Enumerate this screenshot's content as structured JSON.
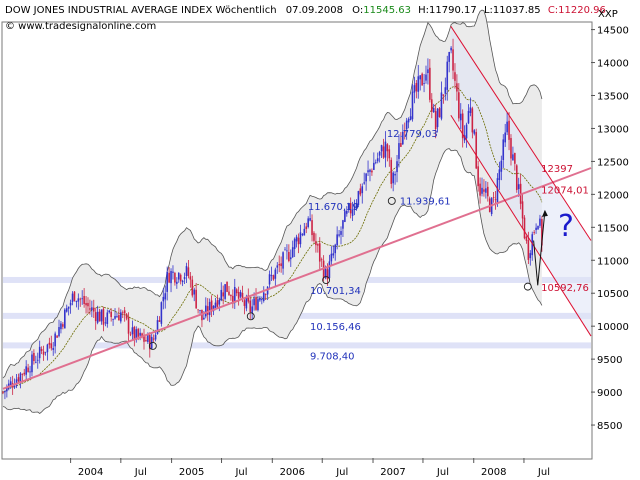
{
  "header": {
    "title": "DOW JONES INDUSTRIAL AVERAGE INDEX Wöchentlich",
    "date": "07.09.2008",
    "open_label": "O:",
    "open": "11545.63",
    "high_label": "H:",
    "high": "11790.17",
    "low_label": "L:",
    "low": "11037.85",
    "close_label": "C:",
    "close": "11220.96",
    "source": "© www.tradesignalonline.com",
    "symbol": "XXP"
  },
  "colors": {
    "bull": "#3333cc",
    "bear": "#cc2244",
    "trend": "#e07090",
    "channel": "#dd1133",
    "band_fill": "#ebebeb",
    "band_line": "#555555",
    "sma": "#6b6b00",
    "level_band": "#dfe2f7",
    "label_blue": "#2233bb",
    "label_red": "#cc1133",
    "question": "#1a1acc"
  },
  "chart_data": {
    "type": "candlestick",
    "timeframe": "weekly",
    "ylim": [
      8000,
      14600
    ],
    "y_ticks": [
      8500,
      9000,
      9500,
      10000,
      10500,
      11000,
      11500,
      12000,
      12500,
      13000,
      13500,
      14000,
      14500
    ],
    "x_ticks": [
      {
        "label": "2004",
        "date": "2004-01-01"
      },
      {
        "label": "Jul",
        "date": "2004-07-01"
      },
      {
        "label": "2005",
        "date": "2005-01-01"
      },
      {
        "label": "Jul",
        "date": "2005-07-01"
      },
      {
        "label": "2006",
        "date": "2006-01-01"
      },
      {
        "label": "Jul",
        "date": "2006-07-01"
      },
      {
        "label": "2007",
        "date": "2007-01-01"
      },
      {
        "label": "Jul",
        "date": "2007-07-01"
      },
      {
        "label": "2008",
        "date": "2008-01-01"
      },
      {
        "label": "Jul",
        "date": "2008-07-01"
      }
    ],
    "xlim": [
      "2003-05-01",
      "2009-03-01"
    ],
    "price_path": [
      [
        "2003-05-01",
        9000
      ],
      [
        "2003-08-01",
        9400
      ],
      [
        "2003-11-01",
        9800
      ],
      [
        "2004-01-15",
        10500
      ],
      [
        "2004-03-01",
        10300
      ],
      [
        "2004-05-01",
        10100
      ],
      [
        "2004-07-01",
        10200
      ],
      [
        "2004-08-15",
        9850
      ],
      [
        "2004-10-25",
        9750
      ],
      [
        "2004-12-20",
        10800
      ],
      [
        "2005-03-01",
        10800
      ],
      [
        "2005-04-20",
        10100
      ],
      [
        "2005-07-15",
        10600
      ],
      [
        "2005-10-15",
        10250
      ],
      [
        "2005-12-31",
        10750
      ],
      [
        "2006-03-01",
        11100
      ],
      [
        "2006-05-10",
        11600
      ],
      [
        "2006-07-15",
        10750
      ],
      [
        "2006-09-15",
        11550
      ],
      [
        "2006-12-31",
        12450
      ],
      [
        "2007-02-20",
        12750
      ],
      [
        "2007-03-10",
        12100
      ],
      [
        "2007-04-30",
        13200
      ],
      [
        "2007-07-15",
        13900
      ],
      [
        "2007-08-15",
        13000
      ],
      [
        "2007-10-10",
        14100
      ],
      [
        "2007-11-25",
        12800
      ],
      [
        "2007-12-20",
        13400
      ],
      [
        "2008-01-20",
        12100
      ],
      [
        "2008-03-10",
        11800
      ],
      [
        "2008-05-01",
        13000
      ],
      [
        "2008-06-01",
        12300
      ],
      [
        "2008-07-15",
        11100
      ],
      [
        "2008-08-20",
        11700
      ],
      [
        "2008-09-07",
        11220
      ]
    ],
    "support_levels": [
      {
        "value": 10701.34,
        "label": "10.701,34"
      },
      {
        "value": 10156.46,
        "label": "10.156,46"
      },
      {
        "value": 9708.4,
        "label": "9.708,40"
      }
    ],
    "level_labels": [
      {
        "text": "12.779,03",
        "date": "2007-02-20",
        "value": 12779.03,
        "color": "blue"
      },
      {
        "text": "11.939,61",
        "date": "2007-03-10",
        "value": 11939.61,
        "color": "blue"
      },
      {
        "text": "11.670,19",
        "date": "2006-05-10",
        "value": 11670.19,
        "color": "blue"
      },
      {
        "text": "12397",
        "date": "2008-08-25",
        "value": 12397,
        "color": "red"
      },
      {
        "text": "12074,01",
        "date": "2008-08-25",
        "value": 12074.01,
        "color": "red"
      },
      {
        "text": "10592,76",
        "date": "2008-08-25",
        "value": 10592.76,
        "color": "red"
      }
    ],
    "trendline": {
      "from": [
        "2003-05-01",
        9050
      ],
      "to": [
        "2009-03-01",
        12400
      ]
    },
    "channel": {
      "upper": {
        "from": [
          "2007-10-10",
          14550
        ],
        "to": [
          "2009-03-01",
          11300
        ]
      },
      "lower": {
        "from": [
          "2007-10-10",
          13200
        ],
        "to": [
          "2009-03-01",
          9850
        ]
      }
    },
    "annotation": {
      "text": "?"
    }
  }
}
